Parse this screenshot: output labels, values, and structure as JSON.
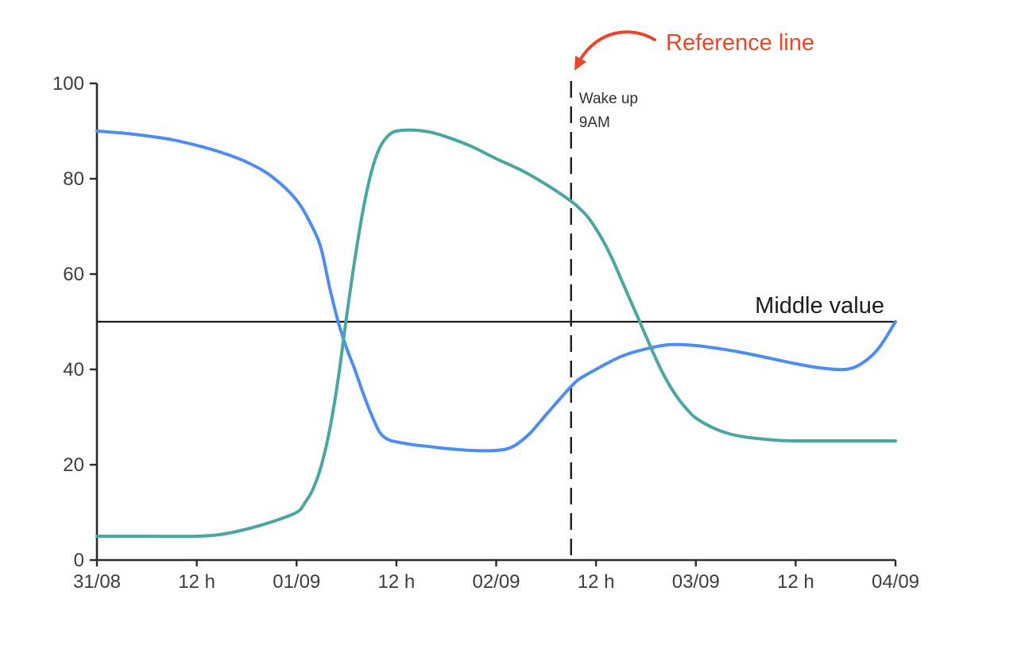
{
  "chart_data": {
    "type": "line",
    "title": "",
    "grid": false,
    "legend": "none",
    "x_axis": {
      "range_hours": [
        0,
        96
      ],
      "ticks": [
        {
          "hour": 0,
          "label": "31/08"
        },
        {
          "hour": 12,
          "label": "12 h"
        },
        {
          "hour": 24,
          "label": "01/09"
        },
        {
          "hour": 36,
          "label": "12 h"
        },
        {
          "hour": 48,
          "label": "02/09"
        },
        {
          "hour": 60,
          "label": "12 h"
        },
        {
          "hour": 72,
          "label": "03/09"
        },
        {
          "hour": 84,
          "label": "12 h"
        },
        {
          "hour": 96,
          "label": "04/09"
        }
      ]
    },
    "y_axis": {
      "range": [
        0,
        100
      ],
      "ticks": [
        0,
        20,
        40,
        60,
        80,
        100
      ]
    },
    "series": [
      {
        "name": "blue-series",
        "color": "#4D8DF2",
        "points": [
          [
            0,
            90
          ],
          [
            3,
            89.6
          ],
          [
            6,
            89
          ],
          [
            9,
            88.2
          ],
          [
            12,
            87
          ],
          [
            15,
            85.5
          ],
          [
            18,
            83.5
          ],
          [
            21,
            80.5
          ],
          [
            24,
            75.5
          ],
          [
            26,
            69.5
          ],
          [
            27,
            65
          ],
          [
            28,
            57
          ],
          [
            29,
            50
          ],
          [
            30,
            44.5
          ],
          [
            31,
            40
          ],
          [
            32,
            35
          ],
          [
            33,
            30.5
          ],
          [
            34,
            26.8
          ],
          [
            35,
            25.3
          ],
          [
            36,
            24.8
          ],
          [
            38,
            24.2
          ],
          [
            40,
            23.8
          ],
          [
            42,
            23.4
          ],
          [
            45,
            23
          ],
          [
            48,
            23
          ],
          [
            50,
            23.8
          ],
          [
            52,
            26.5
          ],
          [
            54,
            30.5
          ],
          [
            56,
            34.5
          ],
          [
            57,
            36.4
          ],
          [
            58,
            38
          ],
          [
            60,
            40
          ],
          [
            63,
            42.7
          ],
          [
            66,
            44.3
          ],
          [
            69,
            45.2
          ],
          [
            72,
            45
          ],
          [
            75,
            44.3
          ],
          [
            78,
            43.4
          ],
          [
            81,
            42.3
          ],
          [
            84,
            41.2
          ],
          [
            87,
            40.3
          ],
          [
            90,
            40
          ],
          [
            92,
            41.3
          ],
          [
            94,
            44.5
          ],
          [
            96,
            50
          ]
        ]
      },
      {
        "name": "teal-series",
        "color": "#4AA6A1",
        "points": [
          [
            0,
            5
          ],
          [
            6,
            5
          ],
          [
            12,
            5
          ],
          [
            15,
            5.4
          ],
          [
            18,
            6.5
          ],
          [
            21,
            8
          ],
          [
            24,
            10
          ],
          [
            25,
            12
          ],
          [
            26,
            15
          ],
          [
            27,
            20
          ],
          [
            28,
            27.5
          ],
          [
            29,
            38
          ],
          [
            30,
            51
          ],
          [
            31,
            63
          ],
          [
            32,
            73.5
          ],
          [
            33,
            81.5
          ],
          [
            34,
            86.5
          ],
          [
            35,
            89
          ],
          [
            36,
            90
          ],
          [
            38,
            90.2
          ],
          [
            40,
            89.8
          ],
          [
            42,
            88.8
          ],
          [
            45,
            86.8
          ],
          [
            48,
            84.2
          ],
          [
            51,
            81.8
          ],
          [
            54,
            78.8
          ],
          [
            57,
            75.3
          ],
          [
            58,
            73.8
          ],
          [
            59,
            72
          ],
          [
            60,
            69.5
          ],
          [
            61,
            66.5
          ],
          [
            62,
            63
          ],
          [
            63,
            59
          ],
          [
            64,
            55
          ],
          [
            65,
            51
          ],
          [
            66,
            47
          ],
          [
            67,
            43
          ],
          [
            68,
            39.3
          ],
          [
            69,
            36.2
          ],
          [
            70,
            33.6
          ],
          [
            71,
            31.5
          ],
          [
            72,
            29.8
          ],
          [
            74,
            27.8
          ],
          [
            76,
            26.5
          ],
          [
            78,
            25.8
          ],
          [
            80,
            25.4
          ],
          [
            82,
            25.1
          ],
          [
            84,
            25
          ],
          [
            90,
            25
          ],
          [
            96,
            25
          ]
        ]
      }
    ],
    "reference_line": {
      "hour": 57,
      "style": "dashed",
      "color": "#1a1a1a",
      "label": [
        "Wake up",
        "9AM"
      ]
    },
    "middle_line": {
      "value": 50,
      "label": "Middle value",
      "color": "#1d1d1d"
    },
    "annotation": {
      "text": "Reference line",
      "color": "#E8472C",
      "arrow": true
    }
  }
}
